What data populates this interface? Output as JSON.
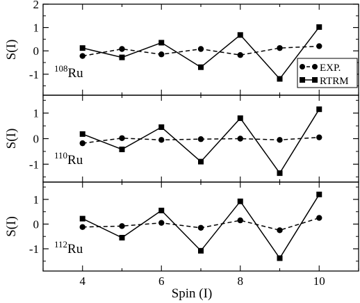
{
  "chart_data": {
    "type": "line",
    "xlabel": "Spin (I)",
    "ylabel": "S(I)",
    "xlim": [
      3,
      11
    ],
    "xticks": [
      4,
      6,
      8,
      10
    ],
    "grid": false,
    "legend": {
      "placement": "right",
      "panel": 0,
      "entries": [
        "EXP.",
        "RTRM"
      ]
    },
    "panels": [
      {
        "label_sup": "108",
        "label_main": "Ru",
        "ylim": [
          -1.9,
          2
        ],
        "yticks": [
          -1,
          0,
          1,
          2
        ],
        "x": [
          4,
          5,
          6,
          7,
          8,
          9,
          10
        ],
        "series": [
          {
            "name": "EXP.",
            "style": "dashed",
            "marker": "circle",
            "values": [
              -0.22,
              0.08,
              -0.15,
              0.08,
              -0.18,
              0.12,
              0.2
            ]
          },
          {
            "name": "RTRM",
            "style": "solid",
            "marker": "square",
            "values": [
              0.12,
              -0.28,
              0.35,
              -0.7,
              0.68,
              -1.2,
              1.02
            ]
          }
        ]
      },
      {
        "label_sup": "110",
        "label_main": "Ru",
        "ylim": [
          -1.7,
          1.7
        ],
        "yticks": [
          -1,
          0,
          1
        ],
        "x": [
          4,
          5,
          6,
          7,
          8,
          9,
          10
        ],
        "series": [
          {
            "name": "EXP.",
            "style": "dashed",
            "marker": "circle",
            "values": [
              -0.18,
              0.02,
              -0.05,
              -0.02,
              0.0,
              -0.05,
              0.05
            ]
          },
          {
            "name": "RTRM",
            "style": "solid",
            "marker": "square",
            "values": [
              0.18,
              -0.42,
              0.45,
              -0.9,
              0.8,
              -1.35,
              1.15
            ]
          }
        ]
      },
      {
        "label_sup": "112",
        "label_main": "Ru",
        "ylim": [
          -1.9,
          1.7
        ],
        "yticks": [
          -1,
          0,
          1
        ],
        "x": [
          4,
          5,
          6,
          7,
          8,
          9,
          10
        ],
        "series": [
          {
            "name": "EXP.",
            "style": "dashed",
            "marker": "circle",
            "values": [
              -0.12,
              -0.08,
              0.05,
              -0.15,
              0.15,
              -0.25,
              0.25
            ]
          },
          {
            "name": "RTRM",
            "style": "solid",
            "marker": "square",
            "values": [
              0.22,
              -0.55,
              0.55,
              -1.08,
              0.92,
              -1.38,
              1.2
            ]
          }
        ]
      }
    ]
  }
}
